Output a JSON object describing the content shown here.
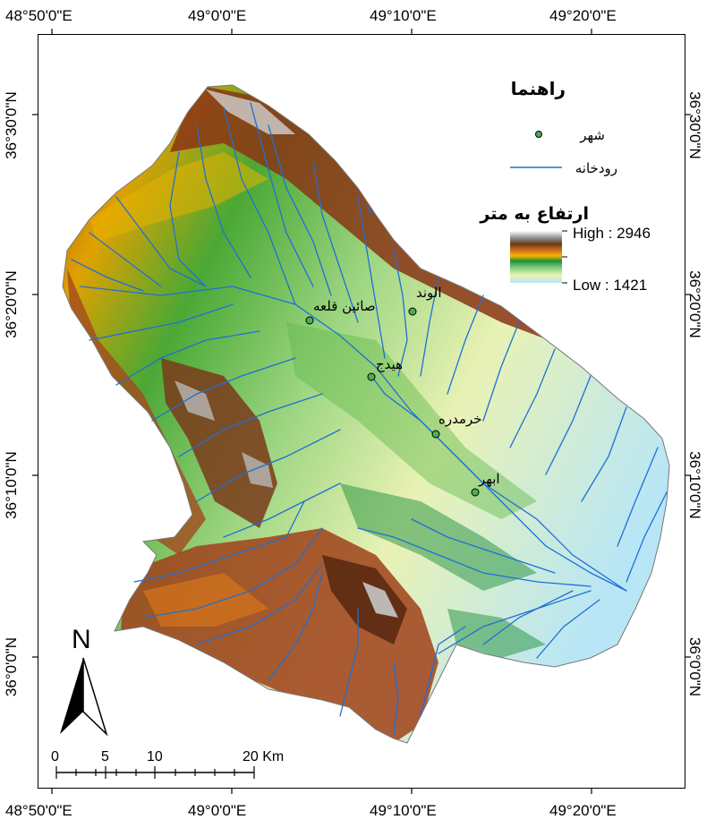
{
  "map": {
    "top_ticks": [
      "48°50'0\"E",
      "49°0'0\"E",
      "49°10'0\"E",
      "49°20'0\"E"
    ],
    "bottom_ticks": [
      "48°50'0\"E",
      "49°0'0\"E",
      "49°10'0\"E",
      "49°20'0\"E"
    ],
    "left_ticks": [
      "36°30'0\"N",
      "36°20'0\"N",
      "36°10'0\"N",
      "36°0'0\"N"
    ],
    "right_ticks": [
      "36°30'0\"N",
      "36°20'0\"N",
      "36°10'0\"N",
      "36°0'0\"N"
    ]
  },
  "legend": {
    "title": "راهنما",
    "city_label": "شهر",
    "river_label": "رودخانه",
    "elevation_title": "ارتفاع به متر",
    "high_label": "High : 2946",
    "low_label": "Low : 1421",
    "colors": {
      "city": "#4caf50",
      "river": "#1f6fd6"
    },
    "ramp": [
      "#ffffff",
      "#9a9a9a",
      "#6b3a1a",
      "#a0411a",
      "#d9711a",
      "#f2b600",
      "#4aa835",
      "#1f8f3c",
      "#79c978",
      "#cbe8a3",
      "#b8e6f6"
    ]
  },
  "cities": [
    {
      "name": "صائین قلعه"
    },
    {
      "name": "الوند"
    },
    {
      "name": "هیدج"
    },
    {
      "name": "خرمدره"
    },
    {
      "name": "ابهر"
    }
  ],
  "north_arrow": {
    "label": "N"
  },
  "scale_bar": {
    "labels": [
      "0",
      "5",
      "10",
      "20 Km"
    ]
  }
}
